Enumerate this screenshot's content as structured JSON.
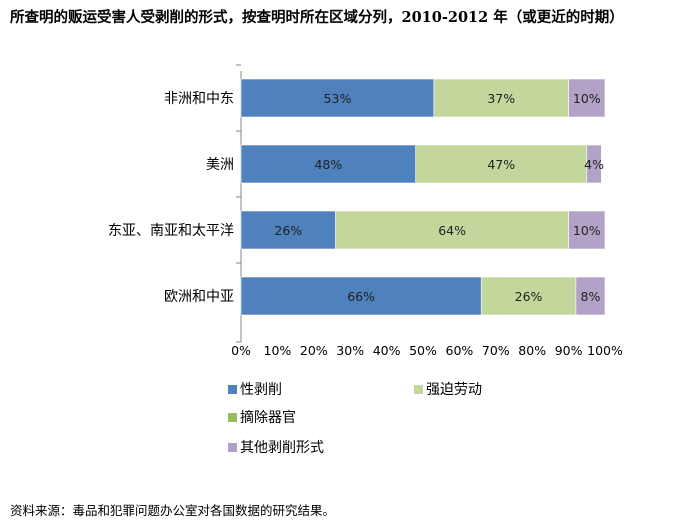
{
  "header": {
    "title": "所查明的贩运受害人受剥削的形式，按查明时所在区域分列，2010-2012 年（或更近的时期）"
  },
  "footer": {
    "source": "资料来源：毒品和犯罪问题办公室对各国数据的研究结果。"
  },
  "chart_data": {
    "type": "bar",
    "orientation": "horizontal",
    "stacked": true,
    "title": "所查明的贩运受害人受剥削的形式，按查明时所在区域分列，2010-2012 年（或更近的时期）",
    "categories": [
      "非洲和中东",
      "美洲",
      "东亚、南亚和太平洋",
      "欧洲和中亚"
    ],
    "series": [
      {
        "name": "性剥削",
        "color": "#4f81bd",
        "values": [
          53,
          48,
          26,
          66
        ],
        "labels": [
          "53%",
          "48%",
          "26%",
          "66%"
        ]
      },
      {
        "name": "强迫劳动",
        "color": "#c3d69b",
        "values": [
          37,
          47,
          64,
          26
        ],
        "labels": [
          "37%",
          "47%",
          "64%",
          "26%"
        ]
      },
      {
        "name": "摘除器官",
        "color": "#9bbb59",
        "values": [
          0,
          0,
          0,
          0
        ],
        "labels": [
          "",
          "",
          "",
          ""
        ]
      },
      {
        "name": "其他剥削形式",
        "color": "#b3a2c7",
        "values": [
          10,
          4,
          10,
          8
        ],
        "labels": [
          "10%",
          "4%",
          "10%",
          "8%"
        ]
      }
    ],
    "xlim": [
      0,
      100
    ],
    "xticks": [
      "0%",
      "10%",
      "20%",
      "30%",
      "40%",
      "50%",
      "60%",
      "70%",
      "80%",
      "90%",
      "100%"
    ],
    "xlabel": "",
    "ylabel": "",
    "grid": false,
    "legend_position": "bottom"
  }
}
